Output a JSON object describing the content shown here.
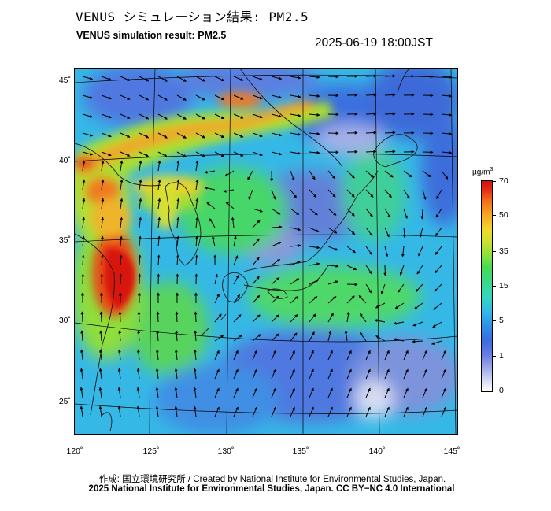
{
  "header": {
    "title_jp": "VENUS シミュレーション結果: PM2.5",
    "title_en": "VENUS simulation result: PM2.5",
    "timestamp": "2025-06-19 18:00JST"
  },
  "map": {
    "lon_range": [
      120,
      145
    ],
    "lat_range": [
      23,
      46
    ],
    "lat_ticks": [
      "45˚",
      "40˚",
      "35˚",
      "30˚",
      "25˚"
    ],
    "lon_ticks": [
      "120˚",
      "125˚",
      "130˚",
      "135˚",
      "140˚",
      "145˚"
    ],
    "layers": [
      "pm25-concentration",
      "wind-vectors",
      "coastlines",
      "graticule"
    ]
  },
  "colorbar": {
    "unit_base": "µg/m",
    "unit_sup": "3",
    "labels": [
      "70",
      "50",
      "35",
      "15",
      "5",
      "1",
      "0"
    ],
    "colors": [
      "#ffffff",
      "#6a7fe2",
      "#33b9e8",
      "#47dc4f",
      "#f2d82a",
      "#f26a1c",
      "#d40f0f"
    ]
  },
  "credits": {
    "line1": "作成: 国立環境研究所 / Created by National Institute for Environmental Studies, Japan.",
    "line2": "2025 National Institute for Environmental Studies, Japan. CC BY−NC 4.0 International"
  }
}
